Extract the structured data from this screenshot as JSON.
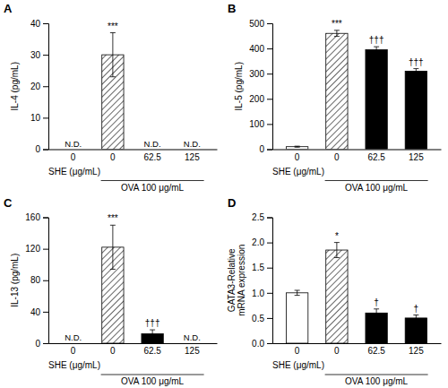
{
  "chart_data": [
    {
      "type": "bar",
      "title": "A",
      "ylabel": "IL-4 (pg/mL)",
      "xlabel": "SHE (μg/mL)",
      "categories": [
        "0",
        "0",
        "62.5",
        "125"
      ],
      "values": [
        null,
        30,
        null,
        null
      ],
      "errors": [
        null,
        7,
        null,
        null
      ],
      "value_labels": [
        "N.D.",
        null,
        "N.D.",
        "N.D."
      ],
      "colors": [
        null,
        "hatch",
        null,
        null
      ],
      "annotations": [
        null,
        "***",
        null,
        null
      ],
      "bracket": {
        "label": "OVA 100 μg/mL",
        "categories": [
          1,
          2,
          3
        ]
      },
      "ylim": [
        0,
        40
      ],
      "yticks": [
        0,
        10,
        20,
        30,
        40
      ]
    },
    {
      "type": "bar",
      "title": "B",
      "ylabel": "IL-5 (pg/mL)",
      "xlabel": "SHE (μg/mL)",
      "categories": [
        "0",
        "0",
        "62.5",
        "125"
      ],
      "values": [
        10,
        460,
        395,
        310
      ],
      "errors": [
        2,
        12,
        12,
        10
      ],
      "colors": [
        "#ffffff",
        "hatch",
        "#000000",
        "#000000"
      ],
      "annotations": [
        null,
        "***",
        "†††",
        "†††"
      ],
      "bracket": {
        "label": "OVA 100 μg/mL",
        "categories": [
          1,
          2,
          3
        ]
      },
      "ylim": [
        0,
        500
      ],
      "yticks": [
        0,
        100,
        200,
        300,
        400,
        500
      ]
    },
    {
      "type": "bar",
      "title": "C",
      "ylabel": "IL-13 (pg/mL)",
      "xlabel": "SHE (μg/mL)",
      "categories": [
        "0",
        "0",
        "62.5",
        "125"
      ],
      "values": [
        null,
        122,
        12,
        null
      ],
      "errors": [
        null,
        28,
        5,
        null
      ],
      "value_labels": [
        "N.D.",
        null,
        null,
        "N.D."
      ],
      "colors": [
        null,
        "hatch",
        "#000000",
        null
      ],
      "annotations": [
        null,
        "***",
        "†††",
        null
      ],
      "bracket": {
        "label": "OVA 100 μg/mL",
        "categories": [
          1,
          2,
          3
        ]
      },
      "ylim": [
        0,
        160
      ],
      "yticks": [
        0,
        40,
        80,
        120,
        160
      ]
    },
    {
      "type": "bar",
      "title": "D",
      "ylabel": "GATA3-Relative\nmRNA expression",
      "xlabel": "SHE (μg/mL)",
      "categories": [
        "0",
        "0",
        "62.5",
        "125"
      ],
      "values": [
        1.0,
        1.85,
        0.6,
        0.5
      ],
      "errors": [
        0.05,
        0.15,
        0.08,
        0.06
      ],
      "colors": [
        "#ffffff",
        "hatch",
        "#000000",
        "#000000"
      ],
      "annotations": [
        null,
        "*",
        "†",
        "†"
      ],
      "bracket": {
        "label": "OVA 100 μg/mL",
        "categories": [
          1,
          2,
          3
        ]
      },
      "ylim": [
        0,
        2.5
      ],
      "yticks": [
        {
          "value": 0,
          "label": "0.0"
        },
        0.5,
        {
          "value": 1.0,
          "label": "1.0"
        },
        1.5,
        {
          "value": 2.0,
          "label": "2.0"
        },
        2.5
      ]
    }
  ]
}
